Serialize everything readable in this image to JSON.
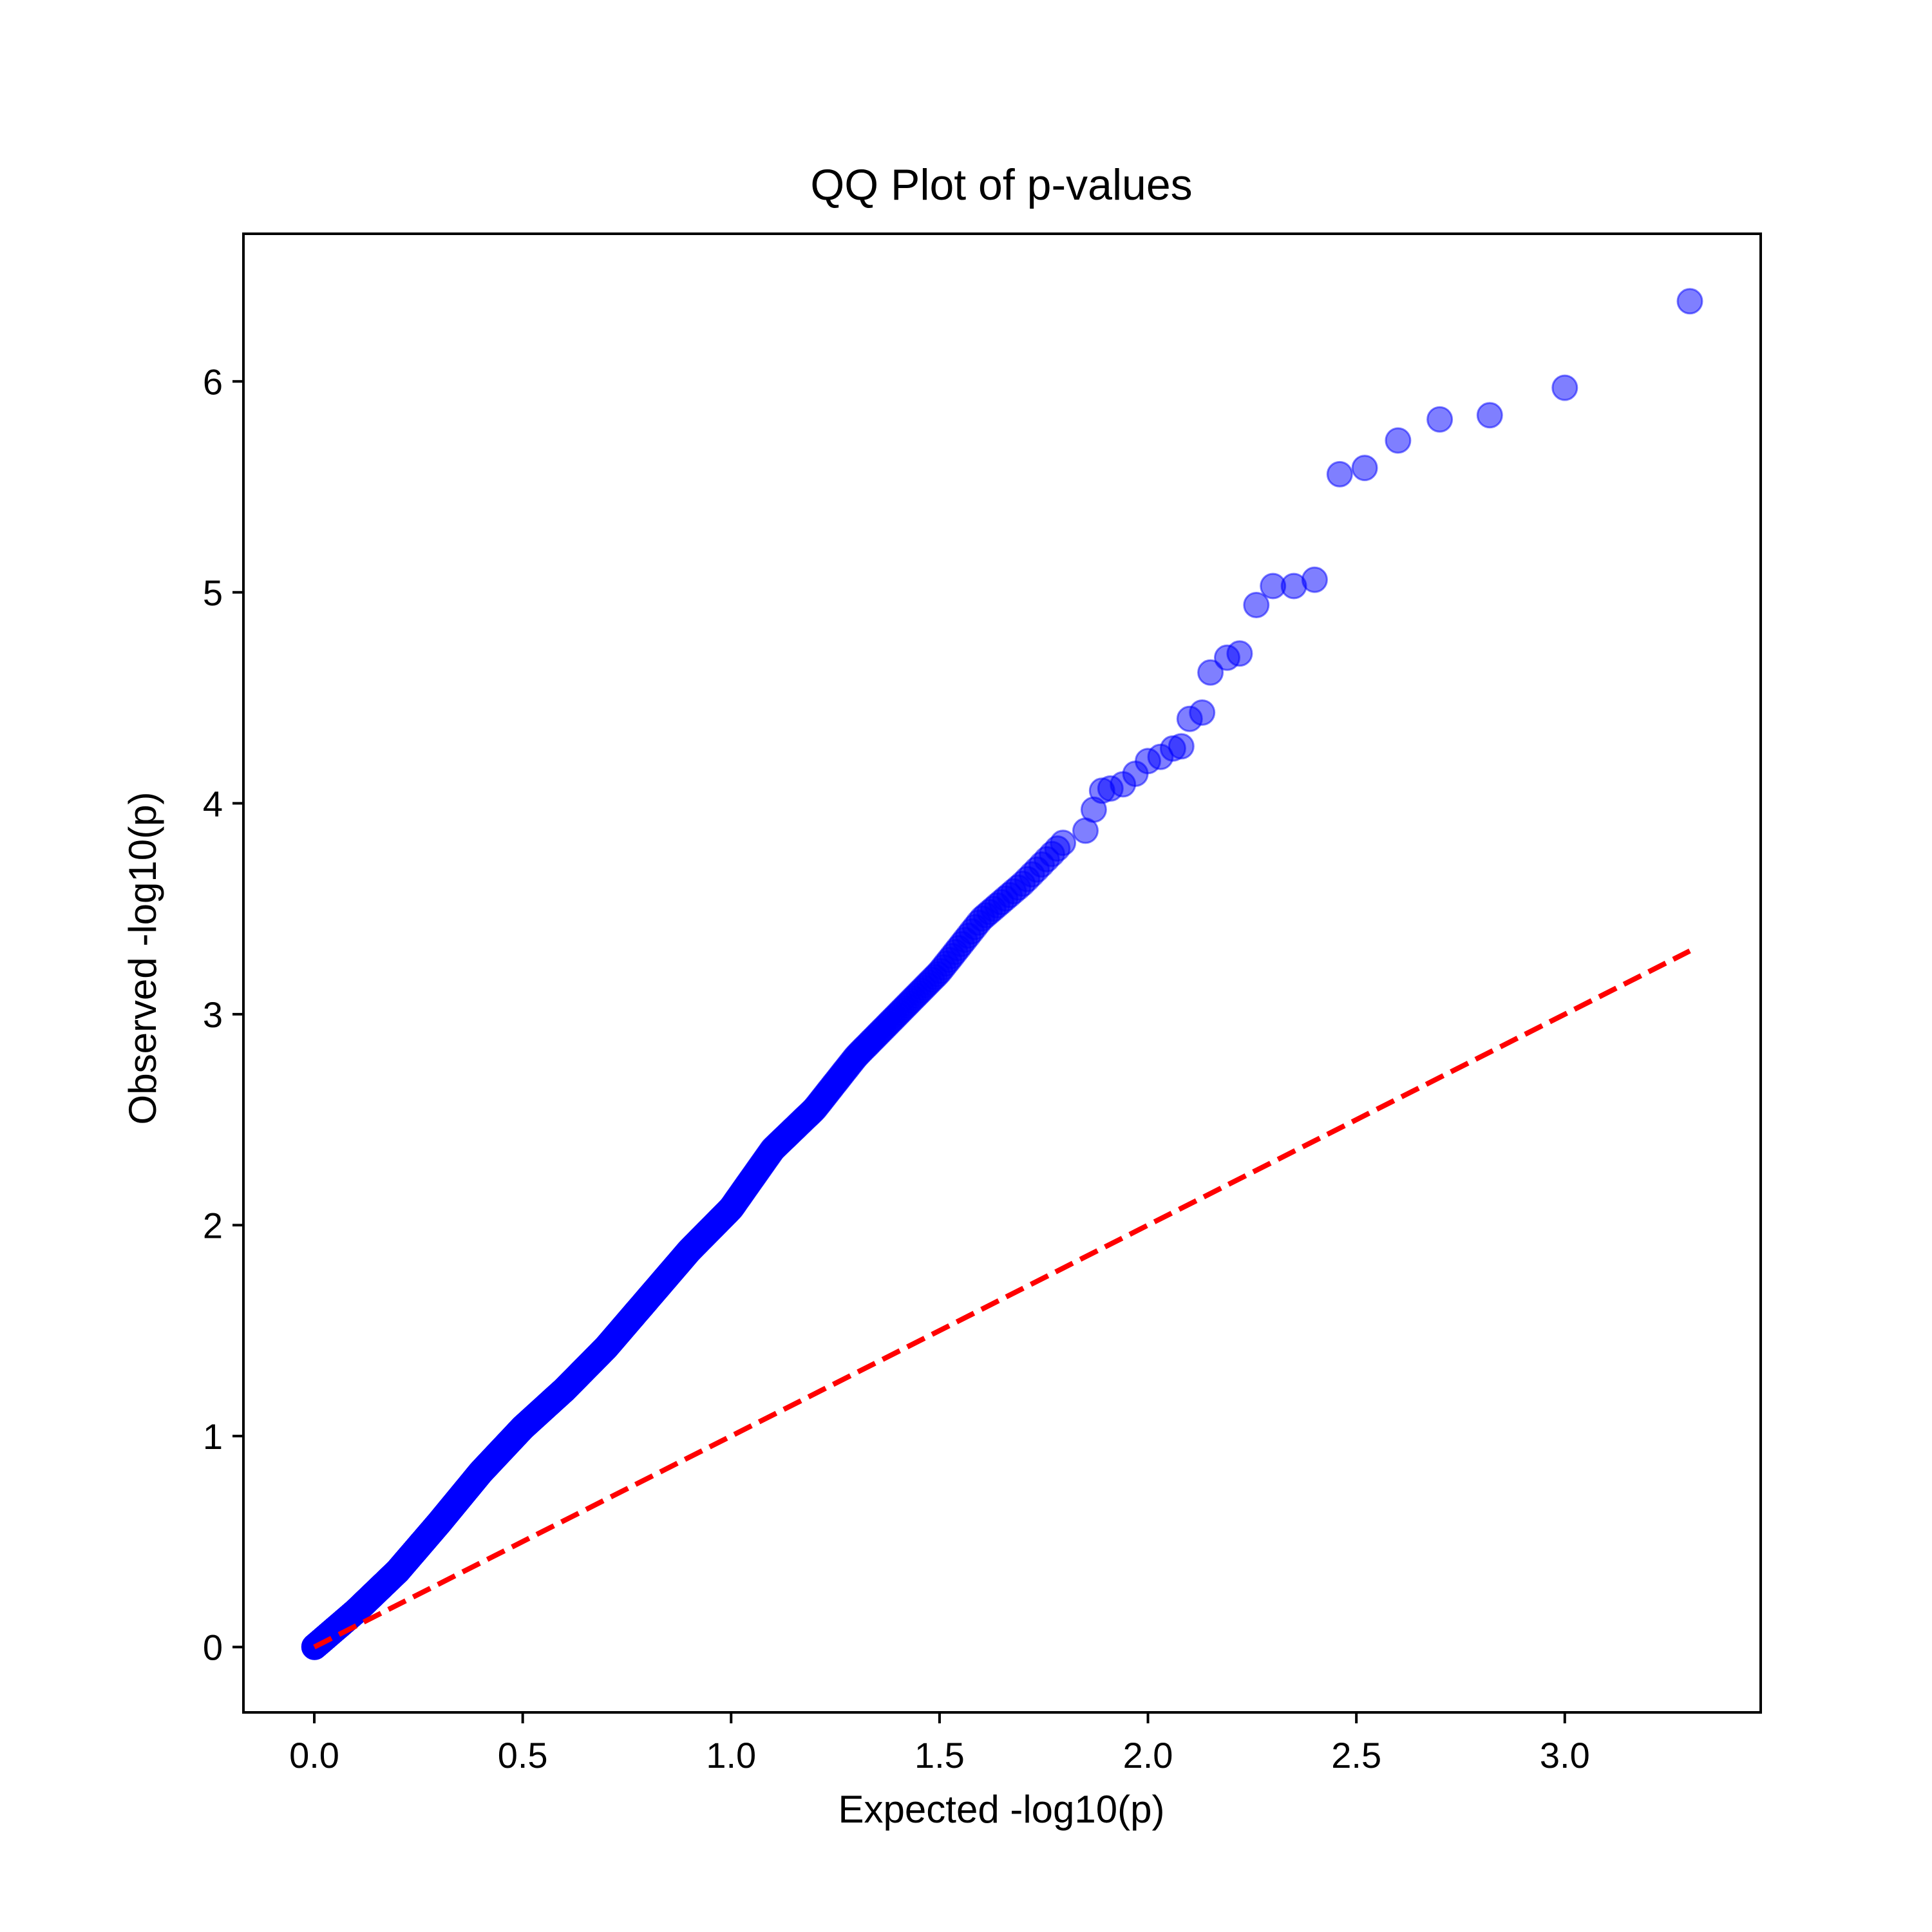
{
  "chart_data": {
    "type": "scatter",
    "title": "QQ Plot of p-values",
    "xlabel": "Expected -log10(p)",
    "ylabel": "Observed -log10(p)",
    "xlim": [
      -0.17,
      3.47
    ],
    "ylim": [
      -0.31,
      6.7
    ],
    "xticks": [
      0.0,
      0.5,
      1.0,
      1.5,
      2.0,
      2.5,
      3.0
    ],
    "xtick_labels": [
      "0.0",
      "0.5",
      "1.0",
      "1.5",
      "2.0",
      "2.5",
      "3.0"
    ],
    "yticks": [
      0,
      1,
      2,
      3,
      4,
      5,
      6
    ],
    "ytick_labels": [
      "0",
      "1",
      "2",
      "3",
      "4",
      "5",
      "6"
    ],
    "grid": false,
    "colors": {
      "points": "#0000ff",
      "reference": "#ff0000"
    },
    "reference_line": {
      "style": "dashed",
      "x": [
        0.0,
        3.3
      ],
      "y": [
        0.0,
        3.3
      ]
    },
    "points": {
      "n": 2000,
      "trend": {
        "x": [
          0.0,
          0.1,
          0.2,
          0.3,
          0.4,
          0.5,
          0.6,
          0.7,
          0.8,
          0.9,
          1.0,
          1.1,
          1.2,
          1.3,
          1.4,
          1.5,
          1.6,
          1.7,
          1.8
        ],
        "y": [
          0.0,
          0.17,
          0.36,
          0.59,
          0.83,
          1.04,
          1.22,
          1.42,
          1.65,
          1.88,
          2.08,
          2.36,
          2.55,
          2.8,
          3.0,
          3.2,
          3.45,
          3.62,
          3.82
        ]
      },
      "tail": [
        {
          "x": 1.85,
          "y": 3.87
        },
        {
          "x": 1.87,
          "y": 3.97
        },
        {
          "x": 1.89,
          "y": 4.06
        },
        {
          "x": 1.91,
          "y": 4.07
        },
        {
          "x": 1.94,
          "y": 4.09
        },
        {
          "x": 1.97,
          "y": 4.14
        },
        {
          "x": 2.0,
          "y": 4.2
        },
        {
          "x": 2.03,
          "y": 4.22
        },
        {
          "x": 2.06,
          "y": 4.26
        },
        {
          "x": 2.08,
          "y": 4.27
        },
        {
          "x": 2.1,
          "y": 4.4
        },
        {
          "x": 2.13,
          "y": 4.43
        },
        {
          "x": 2.15,
          "y": 4.62
        },
        {
          "x": 2.19,
          "y": 4.69
        },
        {
          "x": 2.22,
          "y": 4.71
        },
        {
          "x": 2.26,
          "y": 4.94
        },
        {
          "x": 2.3,
          "y": 5.03
        },
        {
          "x": 2.35,
          "y": 5.03
        },
        {
          "x": 2.4,
          "y": 5.06
        },
        {
          "x": 2.46,
          "y": 5.56
        },
        {
          "x": 2.52,
          "y": 5.59
        },
        {
          "x": 2.6,
          "y": 5.72
        },
        {
          "x": 2.7,
          "y": 5.82
        },
        {
          "x": 2.82,
          "y": 5.84
        },
        {
          "x": 3.0,
          "y": 5.97
        },
        {
          "x": 3.3,
          "y": 6.38
        }
      ]
    }
  }
}
